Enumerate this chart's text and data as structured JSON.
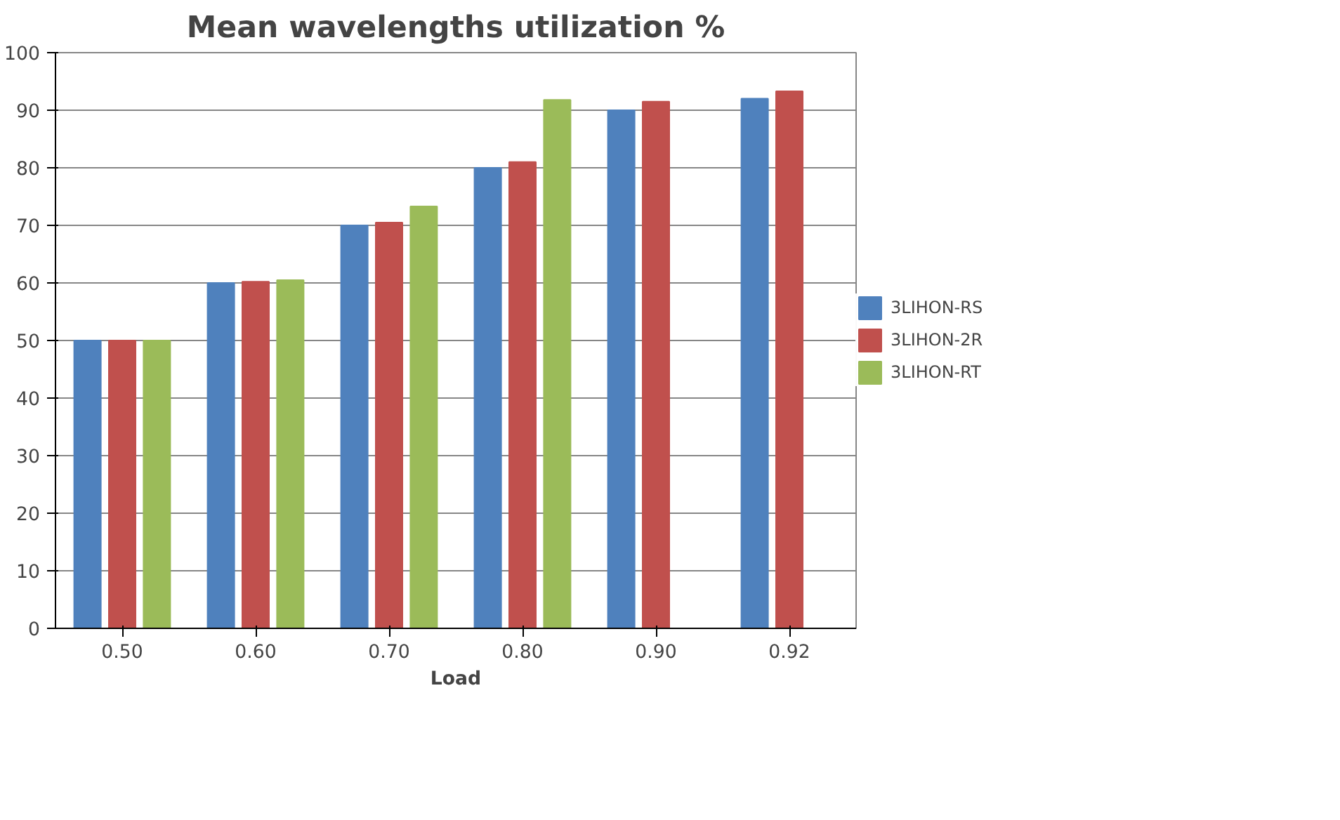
{
  "chart_data": {
    "type": "bar",
    "title": "Mean wavelengths utilization %",
    "xlabel": "Load",
    "categories": [
      "0.50",
      "0.60",
      "0.70",
      "0.80",
      "0.90",
      "0.92"
    ],
    "series": [
      {
        "name": "3LIHON-RS",
        "color": "#4f81bd",
        "values": [
          50,
          60,
          70,
          80,
          90,
          92
        ]
      },
      {
        "name": "3LIHON-2R",
        "color": "#c0504d",
        "values": [
          50,
          60.2,
          70.5,
          81,
          91.5,
          93.3
        ]
      },
      {
        "name": "3LIHON-RT",
        "color": "#9bbb59",
        "values": [
          50,
          60.5,
          73.3,
          91.8,
          null,
          null
        ]
      }
    ],
    "ylim": [
      0,
      100
    ],
    "yticks": [
      0,
      10,
      20,
      30,
      40,
      50,
      60,
      70,
      80,
      90,
      100
    ],
    "grid": "y",
    "legend": "right"
  }
}
